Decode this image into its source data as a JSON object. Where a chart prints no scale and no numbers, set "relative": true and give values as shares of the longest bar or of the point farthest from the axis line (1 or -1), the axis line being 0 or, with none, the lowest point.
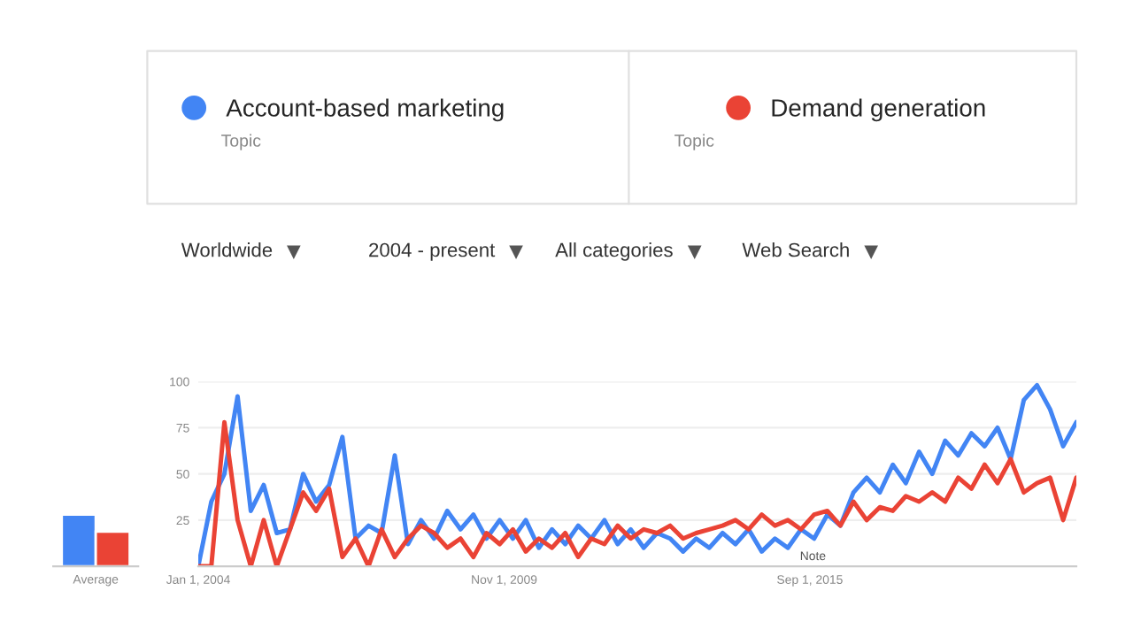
{
  "chart_data": [
    {
      "type": "bar",
      "relative": true,
      "categories": [
        null
      ],
      "series": [
        {
          "color": "#4285f4",
          "values": [
            1
          ]
        },
        {
          "color": "#ea4335",
          "values": [
            0.67
          ]
        }
      ],
      "annotations": [
        "Average"
      ]
    },
    {
      "type": "line",
      "legend": "top",
      "grid": "y",
      "x": [
        "2004-01",
        "2004-04",
        "2004-07",
        "2004-10",
        "2005-01",
        "2005-04",
        "2005-07",
        "2005-10",
        "2006-01",
        "2006-04",
        "2006-07",
        "2006-10",
        "2007-01",
        "2007-04",
        "2007-07",
        "2007-10",
        "2008-01",
        "2008-04",
        "2008-07",
        "2008-10",
        "2009-01",
        "2009-04",
        "2009-07",
        "2009-10",
        "2010-01",
        "2010-04",
        "2010-07",
        "2010-10",
        "2011-01",
        "2011-04",
        "2011-07",
        "2011-10",
        "2012-01",
        "2012-04",
        "2012-07",
        "2012-10",
        "2013-01",
        "2013-04",
        "2013-07",
        "2013-10",
        "2014-01",
        "2014-04",
        "2014-07",
        "2014-10",
        "2015-01",
        "2015-04",
        "2015-07",
        "2015-10",
        "2016-01",
        "2016-04",
        "2016-07",
        "2016-10",
        "2017-01",
        "2017-04",
        "2017-07",
        "2017-10",
        "2018-01",
        "2018-04",
        "2018-07",
        "2018-10",
        "2019-01",
        "2019-04",
        "2019-07",
        "2019-10",
        "2020-01",
        "2020-04",
        "2020-07",
        "2020-10"
      ],
      "series": [
        {
          "name": "Account-based marketing",
          "color": "#4285f4",
          "values": [
            0,
            35,
            50,
            92,
            30,
            44,
            18,
            20,
            50,
            35,
            44,
            70,
            15,
            22,
            18,
            60,
            12,
            25,
            15,
            30,
            20,
            28,
            15,
            25,
            15,
            25,
            10,
            20,
            12,
            22,
            15,
            25,
            12,
            20,
            10,
            18,
            15,
            8,
            15,
            10,
            18,
            12,
            20,
            8,
            15,
            10,
            20,
            15,
            28,
            22,
            40,
            48,
            40,
            55,
            45,
            62,
            50,
            68,
            60,
            72,
            65,
            75,
            58,
            90,
            98,
            85,
            65,
            78
          ]
        },
        {
          "name": "Demand generation",
          "color": "#ea4335",
          "values": [
            0,
            0,
            78,
            25,
            0,
            25,
            0,
            20,
            40,
            30,
            42,
            5,
            15,
            0,
            20,
            5,
            15,
            22,
            18,
            10,
            15,
            5,
            18,
            12,
            20,
            8,
            15,
            10,
            18,
            5,
            15,
            12,
            22,
            15,
            20,
            18,
            22,
            15,
            18,
            20,
            22,
            25,
            20,
            28,
            22,
            25,
            20,
            28,
            30,
            22,
            35,
            25,
            32,
            30,
            38,
            35,
            40,
            35,
            48,
            42,
            55,
            45,
            58,
            40,
            45,
            48,
            25,
            48
          ]
        }
      ],
      "xlim": [
        "2004-01",
        "2020-10"
      ],
      "xticks": [
        {
          "value": "2004-01-01",
          "label": "Jan 1, 2004"
        },
        {
          "value": "2009-11-01",
          "label": "Nov 1, 2009"
        },
        {
          "value": "2015-09-01",
          "label": "Sep 1, 2015"
        }
      ],
      "ylim": [
        0,
        100
      ],
      "yticks": [
        {
          "value": 0,
          "label": null
        },
        25,
        50,
        75,
        100
      ],
      "annotations": [
        "Note",
        "Topic",
        "Topic",
        "Worldwide",
        "2004 - present",
        "All categories",
        "Web Search"
      ]
    }
  ]
}
